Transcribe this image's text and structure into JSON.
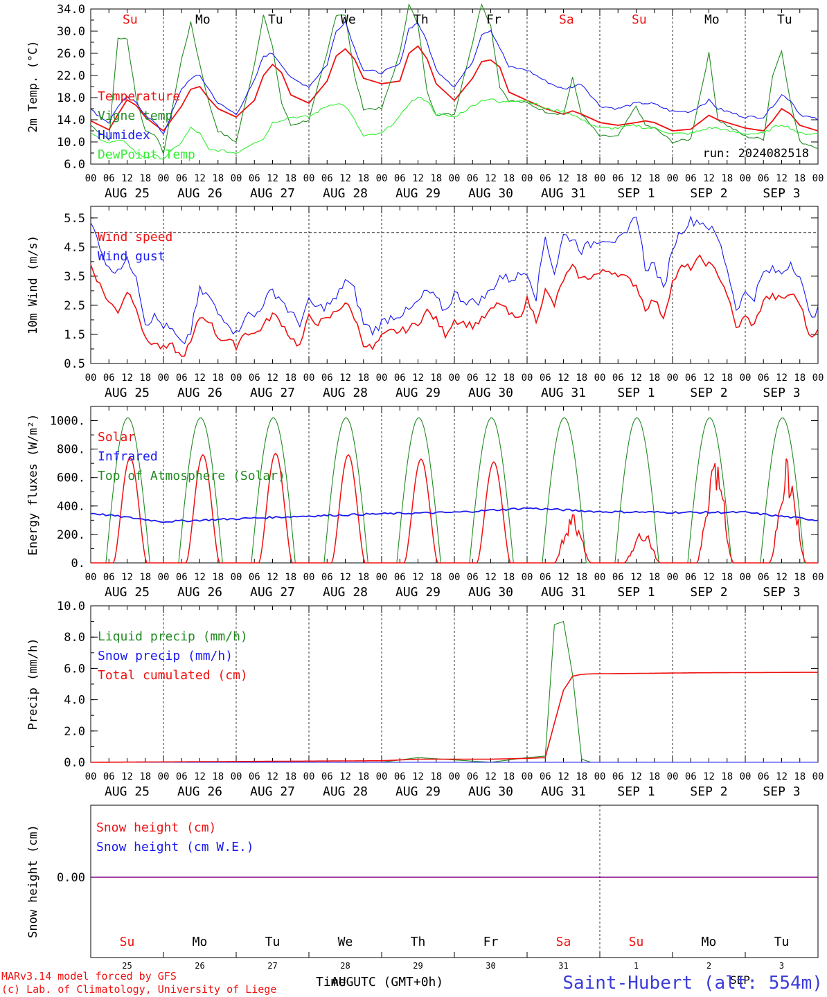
{
  "colors": {
    "red": "#ee1111",
    "green": "#228b22",
    "blue": "#1a1aee",
    "lightgreen": "#33ee33",
    "purple": "#800080",
    "axis": "#000000",
    "weekend": "#ee1111"
  },
  "run_label": "run: 2024082518",
  "time_axis": {
    "hour_ticks": [
      "00",
      "06",
      "12",
      "18"
    ],
    "date_labels": [
      "AUG 25",
      "AUG 26",
      "AUG 27",
      "AUG 28",
      "AUG 29",
      "AUG 30",
      "AUG 31",
      "SEP  1",
      "SEP  2",
      "SEP  3"
    ],
    "weekdays": [
      "Su",
      "Mo",
      "Tu",
      "We",
      "Th",
      "Fr",
      "Sa",
      "Su",
      "Mo",
      "Tu"
    ],
    "weekend_flags": [
      true,
      false,
      false,
      false,
      false,
      false,
      true,
      true,
      false,
      false
    ],
    "day_numbers": [
      "25",
      "26",
      "27",
      "28",
      "29",
      "30",
      "31",
      "1",
      "2",
      "3"
    ],
    "xlabel": "Time UTC (GMT+0h)",
    "xlabel_overlap": "AUG",
    "sep_overlap": "SEP"
  },
  "footer": {
    "line1": "MARv3.14 model forced by GFS",
    "line2": "(c) Lab. of Climatology, University of Liege",
    "station": "Saint-Hubert (alt: 554m)"
  },
  "chart_data": [
    {
      "type": "line",
      "ylabel": "2m Temp. (°C)",
      "ylim": [
        6.0,
        34.0
      ],
      "yticks": [
        "6.0",
        "10.0",
        "14.0",
        "18.0",
        "22.0",
        "26.0",
        "30.0",
        "34.0"
      ],
      "x_hours": [
        0,
        6,
        9,
        12,
        15,
        18,
        21,
        24,
        30,
        33,
        36,
        39,
        42,
        48,
        54,
        57,
        60,
        63,
        66,
        72,
        78,
        81,
        84,
        87,
        90,
        96,
        102,
        105,
        108,
        111,
        114,
        120,
        126,
        129,
        132,
        135,
        138,
        144,
        150,
        156,
        159,
        162,
        168,
        174,
        180,
        183,
        186,
        192,
        198,
        204,
        207,
        210,
        216,
        222,
        225,
        228,
        231,
        234,
        240
      ],
      "series": [
        {
          "name": "Temperature",
          "color": "red",
          "values": [
            13.8,
            12.2,
            15.0,
            17.6,
            16.6,
            14.5,
            13.2,
            12.0,
            16.5,
            19.5,
            20.0,
            17.8,
            16.0,
            14.5,
            17.5,
            22.0,
            24.0,
            22.5,
            18.5,
            17.0,
            21.0,
            25.5,
            26.8,
            25.0,
            21.5,
            20.5,
            21.0,
            26.0,
            27.3,
            25.0,
            20.5,
            17.5,
            21.5,
            24.5,
            24.8,
            23.5,
            19.0,
            17.5,
            16.0,
            15.0,
            15.6,
            15.0,
            13.5,
            13.0,
            13.5,
            13.8,
            13.5,
            12.0,
            12.3,
            14.8,
            14.0,
            13.5,
            12.5,
            12.0,
            13.8,
            16.0,
            15.0,
            13.0,
            12.0
          ]
        },
        {
          "name": "Vigne temp",
          "color": "green",
          "values": [
            13.0,
            10.5,
            28.8,
            28.5,
            18.0,
            12.0,
            11.5,
            8.0,
            25.0,
            31.5,
            24.0,
            17.0,
            12.0,
            10.0,
            24.0,
            33.0,
            27.0,
            17.0,
            13.0,
            14.0,
            26.0,
            33.0,
            33.0,
            22.0,
            16.0,
            16.0,
            26.0,
            35.0,
            31.0,
            19.0,
            15.0,
            15.0,
            28.0,
            35.0,
            31.0,
            20.0,
            17.5,
            17.0,
            15.5,
            15.0,
            21.5,
            15.0,
            11.0,
            11.0,
            16.5,
            13.0,
            12.5,
            10.0,
            10.5,
            26.0,
            14.0,
            13.0,
            11.0,
            10.5,
            22.0,
            26.5,
            17.0,
            10.0,
            9.0
          ]
        },
        {
          "name": "Humidex",
          "color": "blue",
          "values": [
            15.8,
            13.5,
            16.5,
            18.0,
            17.0,
            15.0,
            13.5,
            11.5,
            19.5,
            21.5,
            22.0,
            19.5,
            17.0,
            15.0,
            21.0,
            25.5,
            26.0,
            24.0,
            21.5,
            20.0,
            24.0,
            30.0,
            31.8,
            27.0,
            23.0,
            22.5,
            24.0,
            30.5,
            31.5,
            28.0,
            23.0,
            20.0,
            24.5,
            29.5,
            30.2,
            27.0,
            23.5,
            23.0,
            21.0,
            19.5,
            20.0,
            20.5,
            16.5,
            16.0,
            17.0,
            17.0,
            16.8,
            15.5,
            15.5,
            17.5,
            16.0,
            15.5,
            14.5,
            14.5,
            16.5,
            18.5,
            17.5,
            15.0,
            14.0
          ]
        },
        {
          "name": "DewPoint Temp",
          "color": "lightgreen",
          "values": [
            11.5,
            9.8,
            10.2,
            9.8,
            8.0,
            7.2,
            7.5,
            7.0,
            10.0,
            12.5,
            11.5,
            8.5,
            8.5,
            8.0,
            10.0,
            10.5,
            13.5,
            14.0,
            14.5,
            14.5,
            16.5,
            17.0,
            16.5,
            14.0,
            11.0,
            11.5,
            14.5,
            17.0,
            18.0,
            17.5,
            15.0,
            14.5,
            16.5,
            17.5,
            17.8,
            17.0,
            17.5,
            17.5,
            16.0,
            15.5,
            15.0,
            14.0,
            12.5,
            12.5,
            13.0,
            12.5,
            12.5,
            11.5,
            11.5,
            12.5,
            12.5,
            12.0,
            11.5,
            11.5,
            12.5,
            13.2,
            12.5,
            11.5,
            11.5
          ]
        }
      ]
    },
    {
      "type": "line",
      "ylabel": "10m Wind (m/s)",
      "ylim": [
        0.5,
        5.9
      ],
      "yticks": [
        "0.5",
        "1.5",
        "2.5",
        "3.5",
        "4.5",
        "5.5"
      ],
      "reference_line": 5.0,
      "x_hours": [
        0,
        3,
        6,
        9,
        12,
        15,
        18,
        21,
        24,
        27,
        30,
        33,
        36,
        39,
        42,
        45,
        48,
        51,
        54,
        57,
        60,
        63,
        66,
        69,
        72,
        75,
        78,
        81,
        84,
        87,
        90,
        93,
        96,
        99,
        102,
        105,
        108,
        111,
        114,
        117,
        120,
        123,
        126,
        129,
        132,
        135,
        138,
        141,
        144,
        147,
        150,
        153,
        156,
        159,
        162,
        165,
        168,
        171,
        174,
        177,
        180,
        183,
        186,
        189,
        192,
        195,
        198,
        201,
        204,
        207,
        210,
        213,
        216,
        219,
        222,
        225,
        228,
        231,
        234,
        237,
        240
      ],
      "series": [
        {
          "name": "Wind speed",
          "color": "red",
          "values": [
            3.9,
            3.2,
            2.6,
            2.3,
            3.0,
            2.5,
            1.3,
            1.2,
            1.0,
            1.1,
            0.7,
            1.2,
            2.1,
            2.0,
            1.4,
            1.3,
            1.1,
            1.6,
            1.5,
            1.8,
            2.2,
            1.9,
            1.4,
            1.1,
            2.1,
            1.9,
            2.0,
            2.3,
            2.6,
            2.1,
            1.2,
            1.0,
            1.4,
            1.6,
            1.6,
            1.7,
            1.9,
            2.3,
            2.0,
            1.5,
            2.0,
            1.9,
            1.8,
            2.0,
            2.3,
            2.6,
            2.2,
            2.0,
            2.7,
            2.0,
            3.0,
            2.5,
            3.4,
            3.8,
            3.4,
            3.5,
            3.6,
            3.7,
            3.6,
            3.4,
            3.2,
            2.4,
            2.7,
            2.1,
            3.3,
            3.8,
            3.8,
            4.1,
            3.9,
            3.6,
            2.9,
            1.7,
            2.1,
            1.8,
            2.7,
            2.8,
            2.7,
            2.9,
            2.6,
            1.5,
            1.6
          ]
        },
        {
          "name": "Wind gust",
          "color": "blue",
          "values": [
            5.3,
            4.6,
            3.7,
            3.8,
            4.0,
            3.6,
            1.9,
            2.1,
            1.8,
            1.6,
            1.1,
            1.6,
            3.0,
            2.8,
            2.2,
            2.0,
            1.5,
            2.2,
            2.1,
            2.6,
            3.0,
            2.7,
            2.2,
            1.9,
            2.6,
            2.4,
            2.5,
            2.7,
            3.4,
            3.0,
            1.9,
            1.6,
            1.9,
            2.1,
            2.2,
            2.3,
            2.6,
            3.0,
            2.7,
            2.3,
            2.9,
            2.7,
            2.6,
            2.7,
            3.0,
            3.5,
            3.4,
            3.5,
            3.7,
            2.8,
            4.9,
            3.6,
            4.9,
            4.8,
            4.4,
            4.6,
            4.8,
            4.8,
            4.7,
            4.9,
            5.7,
            3.8,
            3.9,
            3.0,
            4.5,
            5.1,
            5.4,
            5.4,
            5.2,
            4.8,
            3.8,
            2.4,
            2.9,
            2.8,
            3.6,
            3.7,
            3.6,
            4.0,
            3.5,
            2.2,
            2.3
          ]
        }
      ]
    },
    {
      "type": "line",
      "ylabel": "Energy fluxes (W/m²)",
      "ylim": [
        0,
        1100
      ],
      "yticks": [
        "0.",
        "200.",
        "400.",
        "600.",
        "800.",
        "1000."
      ],
      "series": [
        {
          "name": "Solar",
          "color": "red",
          "peaks": [
            740,
            760,
            770,
            760,
            730,
            710,
            310,
            210,
            670,
            650
          ],
          "peak_hours": [
            13,
            13,
            13,
            13,
            13,
            13,
            15,
            14,
            14,
            14
          ]
        },
        {
          "name": "Infrared",
          "color": "blue",
          "daily_values": [
            350,
            290,
            310,
            330,
            345,
            355,
            385,
            360,
            355,
            355,
            300
          ]
        },
        {
          "name": "Top of Atmosphere (Solar)",
          "color": "green",
          "daily_peak": 1020,
          "sunrise_hour": 5,
          "sunset_hour": 19.5
        }
      ]
    },
    {
      "type": "line",
      "ylabel": "Precip (mm/h)",
      "ylim": [
        0,
        10.0
      ],
      "yticks": [
        "0.0",
        "2.0",
        "4.0",
        "6.0",
        "8.0",
        "10.0"
      ],
      "x_hours": [
        0,
        96,
        108,
        132,
        144,
        150,
        153,
        156,
        159,
        162,
        165,
        168,
        180,
        200,
        240
      ],
      "series": [
        {
          "name": "Liquid precip (mm/h)",
          "color": "green",
          "values": [
            0,
            0,
            0.3,
            0,
            0.3,
            0.4,
            8.8,
            9.0,
            5.6,
            0.2,
            0,
            0,
            0,
            0,
            0
          ]
        },
        {
          "name": "Snow precip (mm/h)",
          "color": "blue",
          "values": [
            0,
            0,
            0,
            0,
            0,
            0,
            0,
            0,
            0,
            0,
            0,
            0,
            0,
            0,
            0
          ]
        },
        {
          "name": "Total cumulated (cm)",
          "color": "red",
          "values": [
            0,
            0.1,
            0.2,
            0.2,
            0.25,
            0.3,
            2.5,
            4.6,
            5.5,
            5.62,
            5.65,
            5.66,
            5.68,
            5.72,
            5.75
          ]
        }
      ]
    },
    {
      "type": "line",
      "ylabel": "Snow height (cm)",
      "ylim": [
        -1,
        1
      ],
      "yticks": [
        "0.00"
      ],
      "series": [
        {
          "name": "Snow height (cm)",
          "color": "red",
          "values": [
            0,
            0
          ]
        },
        {
          "name": "Snow height (cm W.E.)",
          "color": "blue",
          "values": [
            0,
            0
          ]
        }
      ]
    }
  ]
}
